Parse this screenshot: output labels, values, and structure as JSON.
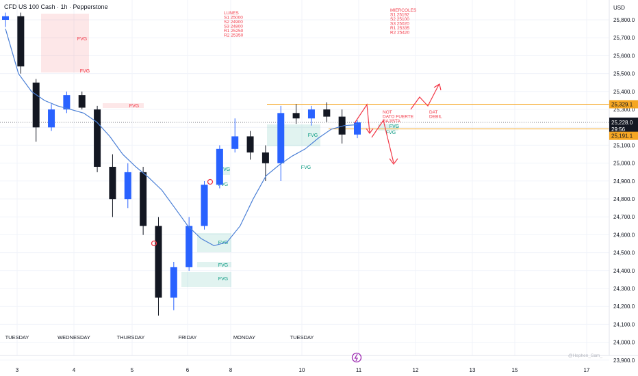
{
  "header": {
    "title": "CFD US 100 Cash · 1h · Pepperstone"
  },
  "price_axis": {
    "currency": "USD",
    "labels": [
      "25,800.0",
      "25,700.0",
      "25,600.0",
      "25,500.0",
      "25,400.0",
      "25,300.0",
      "25,200.0",
      "25,100.0",
      "25,000.0",
      "24,900.0",
      "24,800.0",
      "24,700.0",
      "24,600.0",
      "24,500.0",
      "24,400.0",
      "24,300.0",
      "24,200.0",
      "24,100.0",
      "24,000.0",
      "23,900.0"
    ],
    "badges": {
      "upper": "25,329.1",
      "current_price": "25,228.0",
      "countdown": "29:56",
      "lower": "25,191.1"
    }
  },
  "time_axis": {
    "dates": [
      "3",
      "4",
      "5",
      "6",
      "8",
      "10",
      "11",
      "12",
      "13",
      "15",
      "17"
    ],
    "days": [
      "TUESDAY",
      "WEDNESDAY",
      "THURSDAY",
      "FRIDAY",
      "MONDAY",
      "TUESDAY"
    ]
  },
  "annotations": {
    "lunes": [
      "LUNES",
      "S1 25000",
      "S2 24900",
      "S3 24800",
      "R1 25250",
      "R2 25350"
    ],
    "miercoles": [
      "MIERCOLES",
      "S1 25192",
      "S2 25100",
      "S3 25020",
      "R1 25335",
      "R2 25420"
    ],
    "not_note": [
      "NOT",
      "DATO FUERTE",
      "BAJISTA"
    ],
    "dat_note": [
      "DAT",
      "DEBIL"
    ],
    "fvg": "FVG",
    "watermark": "@Hephen_Sam_"
  },
  "colors": {
    "up": "#2962ff",
    "down": "#131722",
    "ma": "#4a7fd6",
    "fvg_bear": "#f23645",
    "fvg_bull": "#089981",
    "level": "#f5a623",
    "arrow": "#f23645"
  },
  "chart_data": {
    "type": "candlestick",
    "title": "CFD US 100 Cash · 1h · Pepperstone",
    "ylabel": "USD",
    "ylim": [
      23900,
      25850
    ],
    "levels": [
      25329.1,
      25191.1
    ],
    "current_price": 25228.0,
    "moving_average": [
      25750,
      25500,
      25400,
      25350,
      25320,
      25300,
      25280,
      25230,
      25150,
      25050,
      24980,
      24920,
      24850,
      24750,
      24650,
      24580,
      24540,
      24560,
      24650,
      24800,
      24930,
      24990,
      25040,
      25080,
      25140,
      25190,
      25210,
      25215
    ],
    "series": [
      {
        "day": "TUESDAY",
        "o": 25800,
        "h": 25840,
        "l": 25760,
        "c": 25820
      },
      {
        "day": "TUESDAY",
        "o": 25820,
        "h": 25840,
        "l": 25500,
        "c": 25540
      },
      {
        "day": "WEDNESDAY",
        "o": 25450,
        "h": 25470,
        "l": 25120,
        "c": 25200
      },
      {
        "day": "WEDNESDAY",
        "o": 25200,
        "h": 25330,
        "l": 25180,
        "c": 25300
      },
      {
        "day": "WEDNESDAY",
        "o": 25300,
        "h": 25400,
        "l": 25280,
        "c": 25380
      },
      {
        "day": "WEDNESDAY",
        "o": 25380,
        "h": 25400,
        "l": 25300,
        "c": 25310
      },
      {
        "day": "THURSDAY",
        "o": 25300,
        "h": 25320,
        "l": 24950,
        "c": 24980
      },
      {
        "day": "THURSDAY",
        "o": 24980,
        "h": 25050,
        "l": 24700,
        "c": 24800
      },
      {
        "day": "THURSDAY",
        "o": 24800,
        "h": 25000,
        "l": 24750,
        "c": 24950
      },
      {
        "day": "THURSDAY",
        "o": 24950,
        "h": 24980,
        "l": 24600,
        "c": 24650
      },
      {
        "day": "FRIDAY",
        "o": 24650,
        "h": 24700,
        "l": 24150,
        "c": 24250
      },
      {
        "day": "FRIDAY",
        "o": 24250,
        "h": 24450,
        "l": 24180,
        "c": 24420
      },
      {
        "day": "FRIDAY",
        "o": 24420,
        "h": 24700,
        "l": 24400,
        "c": 24650
      },
      {
        "day": "FRIDAY",
        "o": 24650,
        "h": 24900,
        "l": 24630,
        "c": 24880
      },
      {
        "day": "MONDAY",
        "o": 24880,
        "h": 25100,
        "l": 24860,
        "c": 25080
      },
      {
        "day": "MONDAY",
        "o": 25080,
        "h": 25250,
        "l": 25060,
        "c": 25150
      },
      {
        "day": "MONDAY",
        "o": 25150,
        "h": 25180,
        "l": 25020,
        "c": 25060
      },
      {
        "day": "MONDAY",
        "o": 25060,
        "h": 25100,
        "l": 24900,
        "c": 25000
      },
      {
        "day": "TUESDAY",
        "o": 25000,
        "h": 25320,
        "l": 24900,
        "c": 25280
      },
      {
        "day": "TUESDAY",
        "o": 25280,
        "h": 25330,
        "l": 25220,
        "c": 25250
      },
      {
        "day": "TUESDAY",
        "o": 25250,
        "h": 25320,
        "l": 25210,
        "c": 25300
      },
      {
        "day": "TUESDAY",
        "o": 25300,
        "h": 25340,
        "l": 25230,
        "c": 25260
      },
      {
        "day": "TUESDAY",
        "o": 25260,
        "h": 25300,
        "l": 25110,
        "c": 25160
      },
      {
        "day": "TUESDAY",
        "o": 25160,
        "h": 25240,
        "l": 25140,
        "c": 25228
      }
    ]
  }
}
